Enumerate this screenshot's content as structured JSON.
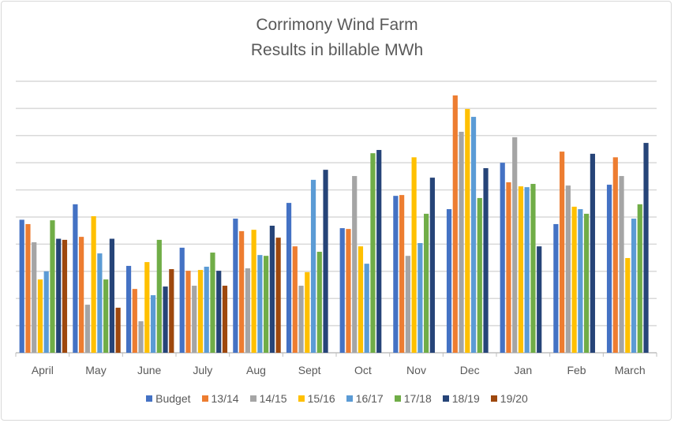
{
  "chart_data": {
    "type": "bar",
    "title": "Corrimony Wind Farm",
    "subtitle": "Results in billable MWh",
    "xlabel": "",
    "ylabel": "",
    "y_tick_labels_shown": false,
    "ylim": [
      0,
      10
    ],
    "grid": true,
    "legend_position": "bottom",
    "categories": [
      "April",
      "May",
      "June",
      "July",
      "Aug",
      "Sept",
      "Oct",
      "Nov",
      "Dec",
      "Jan",
      "Feb",
      "March"
    ],
    "series": [
      {
        "name": "Budget",
        "color": "#4472c4",
        "values": [
          4.9,
          5.47,
          3.2,
          3.87,
          4.94,
          5.52,
          4.59,
          5.78,
          5.29,
          7.0,
          4.74,
          6.19
        ]
      },
      {
        "name": "13/14",
        "color": "#ed7d31",
        "values": [
          4.74,
          4.27,
          2.35,
          3.02,
          4.48,
          3.92,
          4.56,
          5.81,
          9.48,
          6.28,
          7.41,
          7.2
        ]
      },
      {
        "name": "14/15",
        "color": "#a5a5a5",
        "values": [
          4.07,
          1.77,
          1.16,
          2.47,
          3.11,
          2.47,
          6.51,
          3.57,
          8.14,
          7.94,
          6.16,
          6.51
        ]
      },
      {
        "name": "15/16",
        "color": "#ffc000",
        "values": [
          2.7,
          5.03,
          3.34,
          3.05,
          4.53,
          2.97,
          3.92,
          7.2,
          8.98,
          6.13,
          5.38,
          3.49
        ]
      },
      {
        "name": "16/17",
        "color": "#5b9bd5",
        "values": [
          3.0,
          3.66,
          2.12,
          3.17,
          3.6,
          6.37,
          3.28,
          4.04,
          8.69,
          6.1,
          5.29,
          4.94
        ]
      },
      {
        "name": "17/18",
        "color": "#70ad47",
        "values": [
          4.88,
          2.7,
          4.16,
          3.69,
          3.57,
          3.72,
          7.35,
          5.12,
          5.7,
          6.22,
          5.12,
          5.47
        ]
      },
      {
        "name": "18/19",
        "color": "#264478",
        "values": [
          4.2,
          4.2,
          2.44,
          3.02,
          4.68,
          6.74,
          7.47,
          6.45,
          6.8,
          3.92,
          7.33,
          7.73
        ]
      },
      {
        "name": "19/20",
        "color": "#9e480e",
        "values": [
          4.16,
          1.66,
          3.08,
          2.47,
          4.24,
          null,
          null,
          null,
          null,
          null,
          null,
          null
        ]
      }
    ]
  }
}
